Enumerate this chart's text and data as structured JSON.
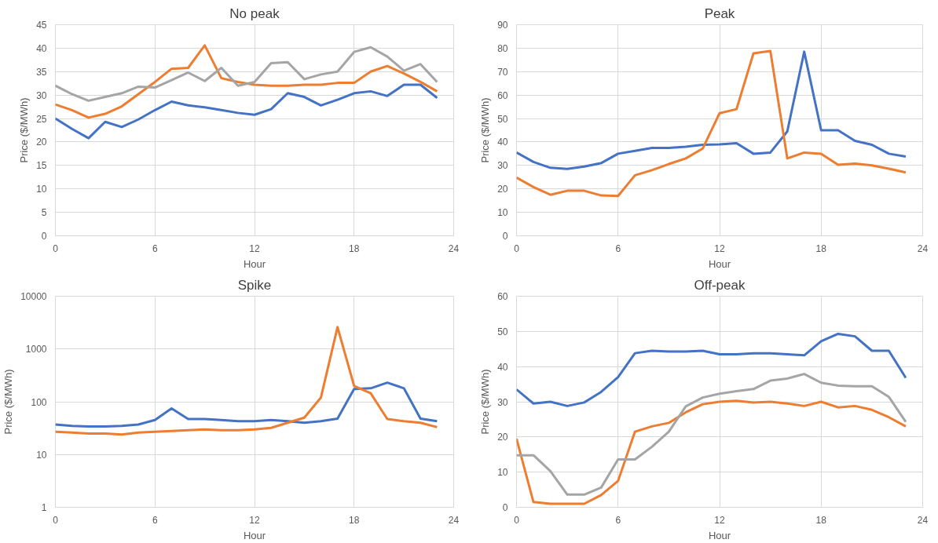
{
  "chart_data": [
    {
      "type": "line",
      "title": "No peak",
      "xlabel": "Hour",
      "ylabel": "Price ($/MWh)",
      "xlim": [
        0,
        24
      ],
      "xticks": [
        0,
        6,
        12,
        18,
        24
      ],
      "ylim": [
        0,
        45
      ],
      "yticks": [
        0,
        5,
        10,
        15,
        20,
        25,
        30,
        35,
        40,
        45
      ],
      "grid": true,
      "x": [
        0,
        1,
        2,
        3,
        4,
        5,
        6,
        7,
        8,
        9,
        10,
        11,
        12,
        13,
        14,
        15,
        16,
        17,
        18,
        19,
        20,
        21,
        22,
        23
      ],
      "series": [
        {
          "color": "#4472c4",
          "values": [
            25,
            22.8,
            20.8,
            24.3,
            23.2,
            24.8,
            26.8,
            28.6,
            27.8,
            27.4,
            26.8,
            26.2,
            25.8,
            27,
            30.4,
            29.6,
            27.8,
            29,
            30.4,
            30.8,
            29.8,
            32.2,
            32.2,
            29.4
          ]
        },
        {
          "color": "#ed7d31",
          "values": [
            28,
            26.8,
            25.2,
            26,
            27.6,
            30.2,
            32.8,
            35.6,
            35.8,
            40.6,
            33.6,
            32.8,
            32.2,
            32,
            32,
            32.2,
            32.2,
            32.6,
            32.6,
            35,
            36.2,
            34.6,
            32.8,
            30.8
          ]
        },
        {
          "color": "#a5a5a5",
          "values": [
            32,
            30.2,
            28.8,
            29.6,
            30.4,
            31.8,
            31.6,
            33.2,
            34.8,
            33,
            35.8,
            32,
            32.8,
            36.8,
            37,
            33.4,
            34.4,
            35,
            39.2,
            40.2,
            38.2,
            35.2,
            36.6,
            32.8
          ]
        }
      ]
    },
    {
      "type": "line",
      "title": "Peak",
      "xlabel": "Hour",
      "ylabel": "Price ($/MWh)",
      "xlim": [
        0,
        24
      ],
      "xticks": [
        0,
        6,
        12,
        18,
        24
      ],
      "ylim": [
        0,
        90
      ],
      "yticks": [
        0,
        10,
        20,
        30,
        40,
        50,
        60,
        70,
        80,
        90
      ],
      "grid": true,
      "x": [
        0,
        1,
        2,
        3,
        4,
        5,
        6,
        7,
        8,
        9,
        10,
        11,
        12,
        13,
        14,
        15,
        16,
        17,
        18,
        19,
        20,
        21,
        22,
        23
      ],
      "series": [
        {
          "color": "#4472c4",
          "values": [
            35.5,
            31.5,
            29,
            28.5,
            29.5,
            31,
            35,
            36.2,
            37.5,
            37.5,
            38,
            38.8,
            39,
            39.5,
            35,
            35.5,
            44.5,
            78.5,
            45,
            45,
            40.5,
            38.8,
            35,
            33.8
          ]
        },
        {
          "color": "#ed7d31",
          "values": [
            24.8,
            20.8,
            17.5,
            19.2,
            19.2,
            17.2,
            17,
            25.8,
            28,
            30.6,
            33,
            37.2,
            52.3,
            54,
            77.8,
            78.8,
            33,
            35.5,
            35,
            30.3,
            30.8,
            30,
            28.6,
            27
          ]
        }
      ]
    },
    {
      "type": "line",
      "title": "Spike",
      "xlabel": "Hour",
      "ylabel": "Price ($/MWh)",
      "xlim": [
        0,
        24
      ],
      "xticks": [
        0,
        6,
        12,
        18,
        24
      ],
      "ylim": [
        1,
        10000
      ],
      "yticks": [
        1,
        10,
        100,
        1000,
        10000
      ],
      "log": "y",
      "grid": true,
      "x": [
        0,
        1,
        2,
        3,
        4,
        5,
        6,
        7,
        8,
        9,
        10,
        11,
        12,
        13,
        14,
        15,
        16,
        17,
        18,
        19,
        20,
        21,
        22,
        23
      ],
      "series": [
        {
          "color": "#4472c4",
          "values": [
            37,
            35,
            34,
            34,
            35,
            37,
            45,
            75,
            47,
            47,
            45,
            43,
            43,
            45,
            43,
            40,
            43,
            48,
            175,
            180,
            230,
            180,
            48,
            43
          ]
        },
        {
          "color": "#ed7d31",
          "values": [
            27,
            26,
            25,
            25,
            24,
            26,
            27,
            28,
            29,
            30,
            29,
            29,
            30,
            32,
            40,
            50,
            120,
            2600,
            200,
            145,
            47,
            43,
            40,
            33
          ]
        }
      ]
    },
    {
      "type": "line",
      "title": "Off-peak",
      "xlabel": "Hour",
      "ylabel": "Price ($/MWh)",
      "xlim": [
        0,
        24
      ],
      "xticks": [
        0,
        6,
        12,
        18,
        24
      ],
      "ylim": [
        0,
        60
      ],
      "yticks": [
        0,
        10,
        20,
        30,
        40,
        50,
        60
      ],
      "grid": true,
      "x": [
        0,
        1,
        2,
        3,
        4,
        5,
        6,
        7,
        8,
        9,
        10,
        11,
        12,
        13,
        14,
        15,
        16,
        17,
        18,
        19,
        20,
        21,
        22,
        23
      ],
      "series": [
        {
          "color": "#4472c4",
          "values": [
            33.5,
            29.5,
            30,
            28.8,
            29.8,
            32.8,
            37,
            43.8,
            44.5,
            44.3,
            44.3,
            44.5,
            43.5,
            43.5,
            43.8,
            43.8,
            43.5,
            43.2,
            47.2,
            49.3,
            48.6,
            44.5,
            44.5,
            36.8
          ]
        },
        {
          "color": "#ed7d31",
          "values": [
            19.5,
            1.5,
            1,
            1,
            1,
            3.5,
            7.5,
            21.5,
            23,
            24,
            27,
            29.3,
            30,
            30.3,
            29.8,
            30,
            29.5,
            28.8,
            30,
            28.4,
            28.8,
            27.7,
            25.6,
            23
          ]
        },
        {
          "color": "#a5a5a5",
          "values": [
            14.8,
            14.8,
            10.3,
            3.6,
            3.6,
            5.6,
            13.6,
            13.6,
            17.2,
            21.5,
            28.7,
            31.2,
            32.3,
            33,
            33.6,
            36,
            36.6,
            37.9,
            35.4,
            34.6,
            34.4,
            34.4,
            31.4,
            24.3
          ]
        }
      ]
    }
  ]
}
